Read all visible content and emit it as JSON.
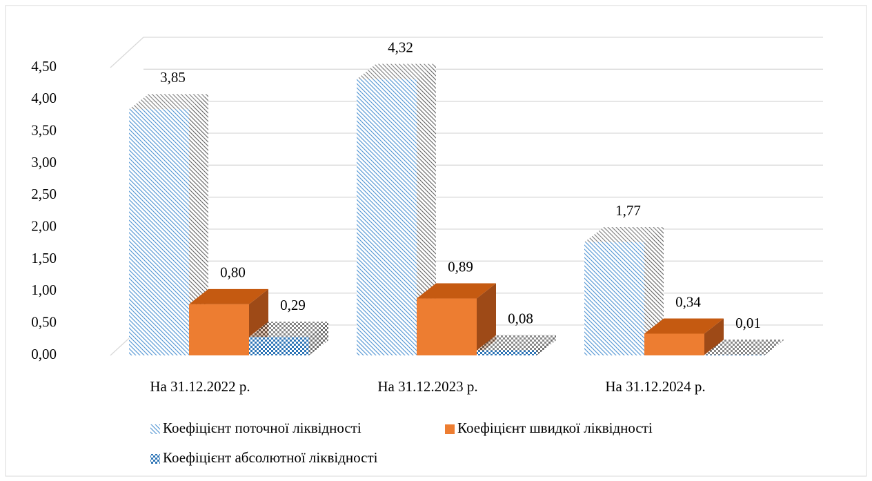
{
  "chart_data": {
    "type": "bar3d",
    "categories": [
      "На 31.12.2022 р.",
      "На 31.12.2023 р.",
      "На 31.12.2024 р."
    ],
    "series": [
      {
        "name": "Коефіцієнт поточної ліквідності",
        "color": "#5b9bd5",
        "pattern": "hatch",
        "values": [
          3.85,
          4.32,
          1.77
        ],
        "value_labels": [
          "3,85",
          "4,32",
          "1,77"
        ]
      },
      {
        "name": "Коефіцієнт швидкої ліквідності",
        "color": "#ed7d31",
        "pattern": "solid",
        "values": [
          0.8,
          0.89,
          0.34
        ],
        "value_labels": [
          "0,80",
          "0,89",
          "0,34"
        ]
      },
      {
        "name": "Коефіцієнт абсолютної ліквідності",
        "color": "#2e75b6",
        "pattern": "checker",
        "values": [
          0.29,
          0.08,
          0.01
        ],
        "value_labels": [
          "0,29",
          "0,08",
          "0,01"
        ]
      }
    ],
    "ylim": [
      0,
      4.5
    ],
    "yticks": [
      {
        "value": 0,
        "label": "0,00"
      },
      {
        "value": 0.5,
        "label": "0,50"
      },
      {
        "value": 1,
        "label": "1,00"
      },
      {
        "value": 1.5,
        "label": "1,50"
      },
      {
        "value": 2,
        "label": "2,00"
      },
      {
        "value": 2.5,
        "label": "2,50"
      },
      {
        "value": 3,
        "label": "3,00"
      },
      {
        "value": 3.5,
        "label": "3,50"
      },
      {
        "value": 4,
        "label": "4,00"
      },
      {
        "value": 4.5,
        "label": "4,50"
      }
    ],
    "grid": true,
    "legend": "bottom"
  }
}
